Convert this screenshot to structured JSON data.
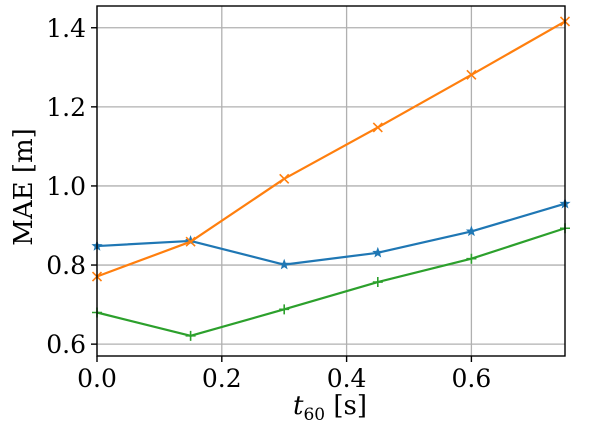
{
  "chart_data": {
    "type": "line",
    "xlabel_main": "t",
    "xlabel_sub": "60",
    "xlabel_unit": " [s]",
    "ylabel": "MAE [m]",
    "xlim": [
      0.0,
      0.75
    ],
    "ylim": [
      0.57,
      1.455
    ],
    "xticks": [
      0.0,
      0.2,
      0.4,
      0.6
    ],
    "xtick_labels": [
      "0.0",
      "0.2",
      "0.4",
      "0.6"
    ],
    "yticks": [
      0.6,
      0.8,
      1.0,
      1.2,
      1.4
    ],
    "ytick_labels": [
      "0.6",
      "0.8",
      "1.0",
      "1.2",
      "1.4"
    ],
    "grid": true,
    "x": [
      0.0,
      0.15,
      0.3,
      0.45,
      0.6,
      0.75
    ],
    "series": [
      {
        "color": "#1f77b4",
        "marker": "star",
        "values": [
          0.848,
          0.861,
          0.801,
          0.831,
          0.885,
          0.955
        ]
      },
      {
        "color": "#ff7f0e",
        "marker": "x",
        "values": [
          0.771,
          0.859,
          1.018,
          1.148,
          1.281,
          1.416
        ]
      },
      {
        "color": "#2ca02c",
        "marker": "plus",
        "values": [
          0.68,
          0.621,
          0.688,
          0.757,
          0.816,
          0.893
        ]
      }
    ]
  }
}
